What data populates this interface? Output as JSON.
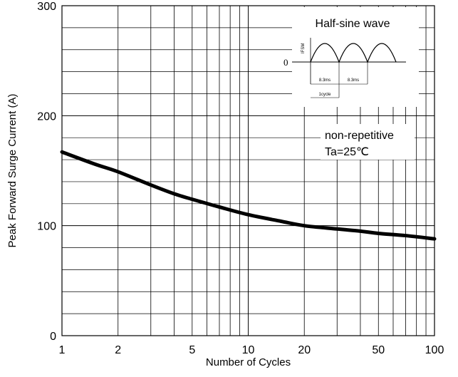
{
  "chart_data": {
    "type": "line",
    "xlabel": "Number of Cycles",
    "ylabel": "Peak Forward Surge Current (A)",
    "x_scale": "log",
    "xlim": [
      1,
      100
    ],
    "ylim": [
      0,
      300
    ],
    "x_ticks": [
      "1",
      "2",
      "5",
      "10",
      "20",
      "50",
      "100"
    ],
    "y_ticks": [
      "0",
      "100",
      "200",
      "300"
    ],
    "grid": true,
    "series": [
      {
        "x": [
          1,
          1.5,
          2,
          3,
          4,
          5,
          7,
          10,
          15,
          20,
          30,
          40,
          50,
          70,
          100
        ],
        "values": [
          167,
          156,
          149,
          137,
          129,
          124,
          117,
          110,
          104,
          100,
          97,
          95,
          93,
          91,
          88
        ],
        "color": "#000000"
      }
    ],
    "annotations": {
      "inset_title": "Half-sine wave",
      "inset_ifsm": "IFSM",
      "inset_zero": "0",
      "inset_period1": "8.3ms",
      "inset_period2": "8.3ms",
      "inset_cycle": "1cycle",
      "condition_line1": "non-repetitive",
      "condition_line2": "Ta=25℃"
    }
  }
}
